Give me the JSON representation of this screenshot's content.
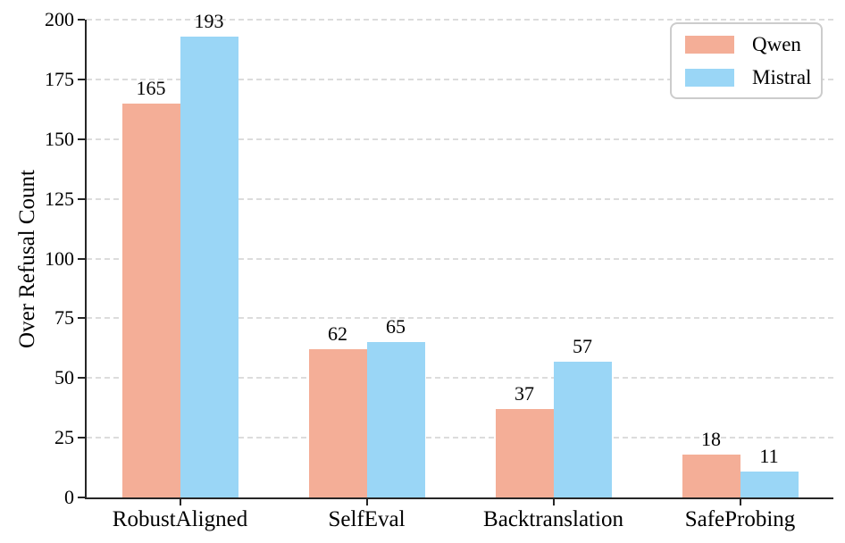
{
  "chart_data": {
    "type": "bar",
    "title": "",
    "categories": [
      "RobustAligned",
      "SelfEval",
      "Backtranslation",
      "SafeProbing"
    ],
    "series": [
      {
        "name": "Qwen",
        "color": "#F4AE97",
        "values": [
          165,
          62,
          37,
          18
        ]
      },
      {
        "name": "Mistral",
        "color": "#9AD6F6",
        "values": [
          193,
          65,
          57,
          11
        ]
      }
    ],
    "xlabel": "",
    "ylabel": "Over Refusal Count",
    "ylim": [
      0,
      200
    ],
    "yticks": [
      0,
      25,
      50,
      75,
      100,
      125,
      150,
      175,
      200
    ],
    "grid": "horizontal-dashed",
    "gridline_color": "#dcdcdc",
    "axis_color": "#262626",
    "bar_value_labels": true,
    "legend_position": "upper-right",
    "legend_border_color": "#cccccc"
  }
}
